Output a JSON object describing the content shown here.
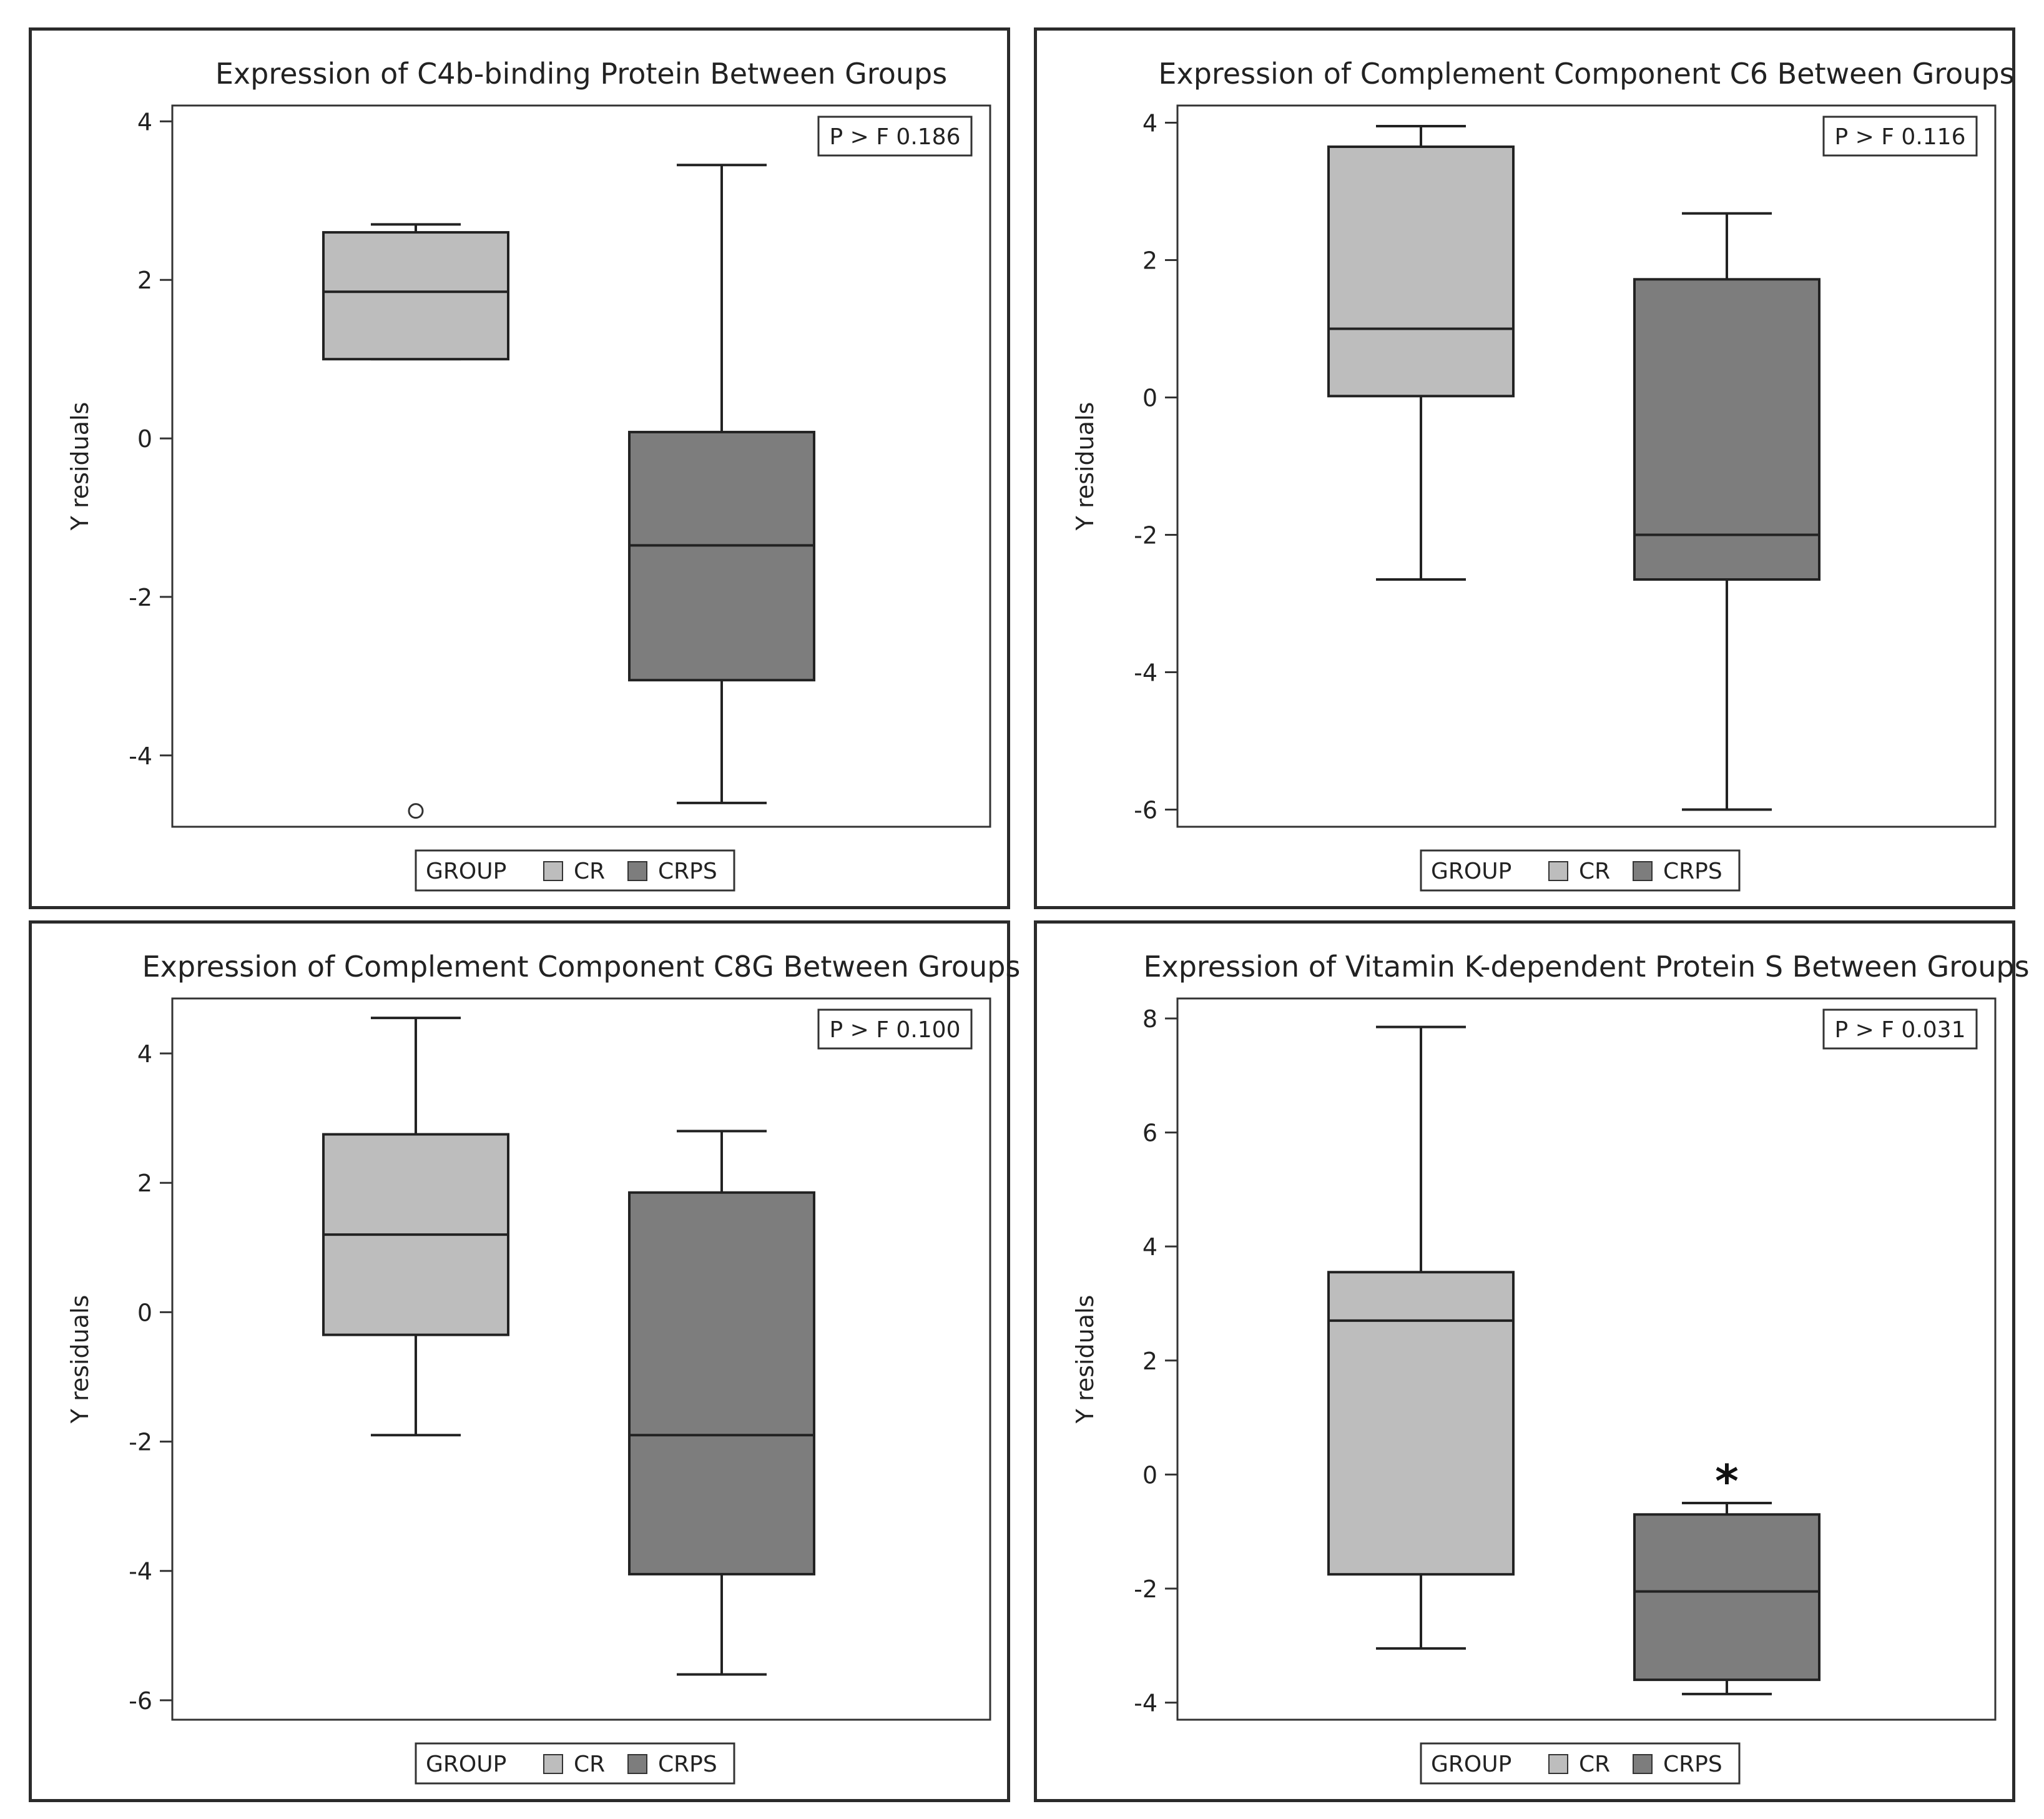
{
  "legend": {
    "title": "GROUP",
    "items": [
      {
        "label": "CR",
        "color": "#bdbdbd"
      },
      {
        "label": "CRPS",
        "color": "#7d7d7d"
      }
    ]
  },
  "axis_label": "Y residuals",
  "chart_data": [
    {
      "type": "box",
      "title": "Expression of C4b-binding Protein  Between Groups",
      "ylabel": "Y residuals",
      "ylim": [
        -4.9,
        4.2
      ],
      "yticks": [
        4,
        2,
        0,
        -2,
        -4
      ],
      "ytick_labels": [
        "4",
        "2",
        "0",
        "-2",
        "-4"
      ],
      "stat_label": "P  > F 0.186",
      "categories": [
        "CR",
        "CRPS"
      ],
      "boxes": [
        {
          "group": "CR",
          "whisker_low": 1.0,
          "q1": 1.0,
          "median": 1.85,
          "q3": 2.6,
          "whisker_high": 2.7,
          "outliers": [
            -4.7
          ]
        },
        {
          "group": "CRPS",
          "whisker_low": -4.6,
          "q1": -3.05,
          "median": -1.35,
          "q3": 0.08,
          "whisker_high": 3.45,
          "outliers": []
        }
      ],
      "annotation": ""
    },
    {
      "type": "box",
      "title": "Expression of Complement Component C6 Between Groups",
      "ylabel": "Y residuals",
      "ylim": [
        -6.25,
        4.25
      ],
      "yticks": [
        4,
        2,
        0,
        -2,
        -4,
        -6
      ],
      "ytick_labels": [
        "4",
        "2",
        "0",
        "-2",
        "-4",
        "-6"
      ],
      "stat_label": "P > F 0.116",
      "categories": [
        "CR",
        "CRPS"
      ],
      "boxes": [
        {
          "group": "CR",
          "whisker_low": -2.65,
          "q1": 0.02,
          "median": 1.0,
          "q3": 3.65,
          "whisker_high": 3.95,
          "outliers": []
        },
        {
          "group": "CRPS",
          "whisker_low": -6.0,
          "q1": -2.65,
          "median": -2.0,
          "q3": 1.72,
          "whisker_high": 2.68,
          "outliers": []
        }
      ],
      "annotation": ""
    },
    {
      "type": "box",
      "title": "Expression of Complement Component C8G Between Groups",
      "ylabel": "Y residuals",
      "ylim": [
        -6.3,
        4.85
      ],
      "yticks": [
        4,
        2,
        0,
        -2,
        -4,
        -6
      ],
      "ytick_labels": [
        "4",
        "2",
        "0",
        "-2",
        "-4",
        "-6"
      ],
      "stat_label": "P > F 0.100",
      "categories": [
        "CR",
        "CRPS"
      ],
      "boxes": [
        {
          "group": "CR",
          "whisker_low": -1.9,
          "q1": -0.35,
          "median": 1.2,
          "q3": 2.75,
          "whisker_high": 4.55,
          "outliers": []
        },
        {
          "group": "CRPS",
          "whisker_low": -5.6,
          "q1": -4.05,
          "median": -1.9,
          "q3": 1.85,
          "whisker_high": 2.8,
          "outliers": []
        }
      ],
      "annotation": ""
    },
    {
      "type": "box",
      "title": "Expression of Vitamin K-dependent Protein S Between Groups",
      "ylabel": "Y residuals",
      "ylim": [
        -4.3,
        8.35
      ],
      "yticks": [
        8,
        6,
        4,
        2,
        0,
        -2,
        -4
      ],
      "ytick_labels": [
        "8",
        "6",
        "4",
        "2",
        "0",
        "-2",
        "-4"
      ],
      "stat_label": "P > F 0.031",
      "categories": [
        "CR",
        "CRPS"
      ],
      "boxes": [
        {
          "group": "CR",
          "whisker_low": -3.05,
          "q1": -1.75,
          "median": 2.7,
          "q3": 3.55,
          "whisker_high": 7.85,
          "outliers": []
        },
        {
          "group": "CRPS",
          "whisker_low": -3.85,
          "q1": -3.6,
          "median": -2.05,
          "q3": -0.7,
          "whisker_high": -0.5,
          "outliers": []
        }
      ],
      "annotation": "*"
    }
  ]
}
